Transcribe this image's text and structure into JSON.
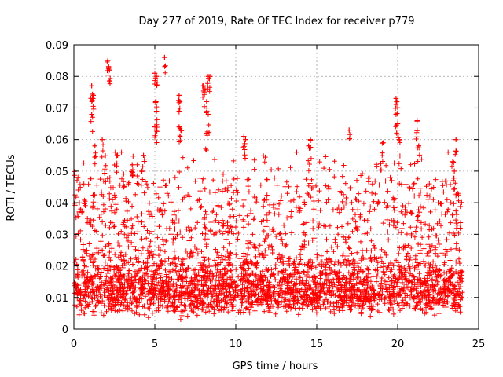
{
  "chart_data": {
    "type": "scatter",
    "title": "Day 277 of 2019, Rate Of TEC Index for receiver p779",
    "xlabel": "GPS time / hours",
    "ylabel": "ROTI / TECUs",
    "xlim": [
      0,
      25
    ],
    "ylim": [
      0,
      0.09
    ],
    "xticks": [
      0,
      5,
      10,
      15,
      20,
      25
    ],
    "xtick_labels": [
      "0",
      "5",
      "10",
      "15",
      "20",
      "25"
    ],
    "yticks": [
      0,
      0.01,
      0.02,
      0.03,
      0.04,
      0.05,
      0.06,
      0.07,
      0.08,
      0.09
    ],
    "ytick_labels": [
      "0",
      "0.01",
      "0.02",
      "0.03",
      "0.04",
      "0.05",
      "0.06",
      "0.07",
      "0.08",
      "0.09"
    ],
    "grid": true,
    "marker": "+",
    "color": "#ff0000",
    "series": [
      {
        "name": "ROTI",
        "notable_points": [
          {
            "x": 1.1,
            "y": 0.077
          },
          {
            "x": 1.15,
            "y": 0.073
          },
          {
            "x": 1.2,
            "y": 0.074
          },
          {
            "x": 1.1,
            "y": 0.068
          },
          {
            "x": 1.3,
            "y": 0.058
          },
          {
            "x": 1.75,
            "y": 0.06
          },
          {
            "x": 2.1,
            "y": 0.085
          },
          {
            "x": 2.15,
            "y": 0.083
          },
          {
            "x": 2.2,
            "y": 0.082
          },
          {
            "x": 2.7,
            "y": 0.055
          },
          {
            "x": 3.6,
            "y": 0.052
          },
          {
            "x": 4.2,
            "y": 0.05
          },
          {
            "x": 4.3,
            "y": 0.055
          },
          {
            "x": 5.0,
            "y": 0.081
          },
          {
            "x": 5.1,
            "y": 0.08
          },
          {
            "x": 5.05,
            "y": 0.072
          },
          {
            "x": 5.1,
            "y": 0.069
          },
          {
            "x": 5.0,
            "y": 0.064
          },
          {
            "x": 5.1,
            "y": 0.063
          },
          {
            "x": 5.6,
            "y": 0.086
          },
          {
            "x": 6.5,
            "y": 0.074
          },
          {
            "x": 6.55,
            "y": 0.072
          },
          {
            "x": 6.5,
            "y": 0.064
          },
          {
            "x": 6.6,
            "y": 0.063
          },
          {
            "x": 8.0,
            "y": 0.077
          },
          {
            "x": 8.1,
            "y": 0.076
          },
          {
            "x": 8.3,
            "y": 0.08
          },
          {
            "x": 8.4,
            "y": 0.08
          },
          {
            "x": 8.2,
            "y": 0.072
          },
          {
            "x": 8.3,
            "y": 0.068
          },
          {
            "x": 8.2,
            "y": 0.062
          },
          {
            "x": 10.5,
            "y": 0.061
          },
          {
            "x": 10.6,
            "y": 0.06
          },
          {
            "x": 14.6,
            "y": 0.06
          },
          {
            "x": 14.5,
            "y": 0.058
          },
          {
            "x": 17.0,
            "y": 0.063
          },
          {
            "x": 19.1,
            "y": 0.059
          },
          {
            "x": 19.9,
            "y": 0.073
          },
          {
            "x": 19.95,
            "y": 0.072
          },
          {
            "x": 19.9,
            "y": 0.068
          },
          {
            "x": 20.0,
            "y": 0.065
          },
          {
            "x": 20.1,
            "y": 0.06
          },
          {
            "x": 21.2,
            "y": 0.066
          },
          {
            "x": 21.2,
            "y": 0.063
          },
          {
            "x": 21.3,
            "y": 0.058
          },
          {
            "x": 23.6,
            "y": 0.06
          },
          {
            "x": 23.4,
            "y": 0.053
          },
          {
            "x": 23.5,
            "y": 0.05
          }
        ],
        "bulk": {
          "x_range": [
            0,
            24
          ],
          "typical_range": [
            0.005,
            0.03
          ],
          "median": 0.014,
          "minimum": 0.003,
          "samples_per_hour": 230
        }
      }
    ]
  }
}
